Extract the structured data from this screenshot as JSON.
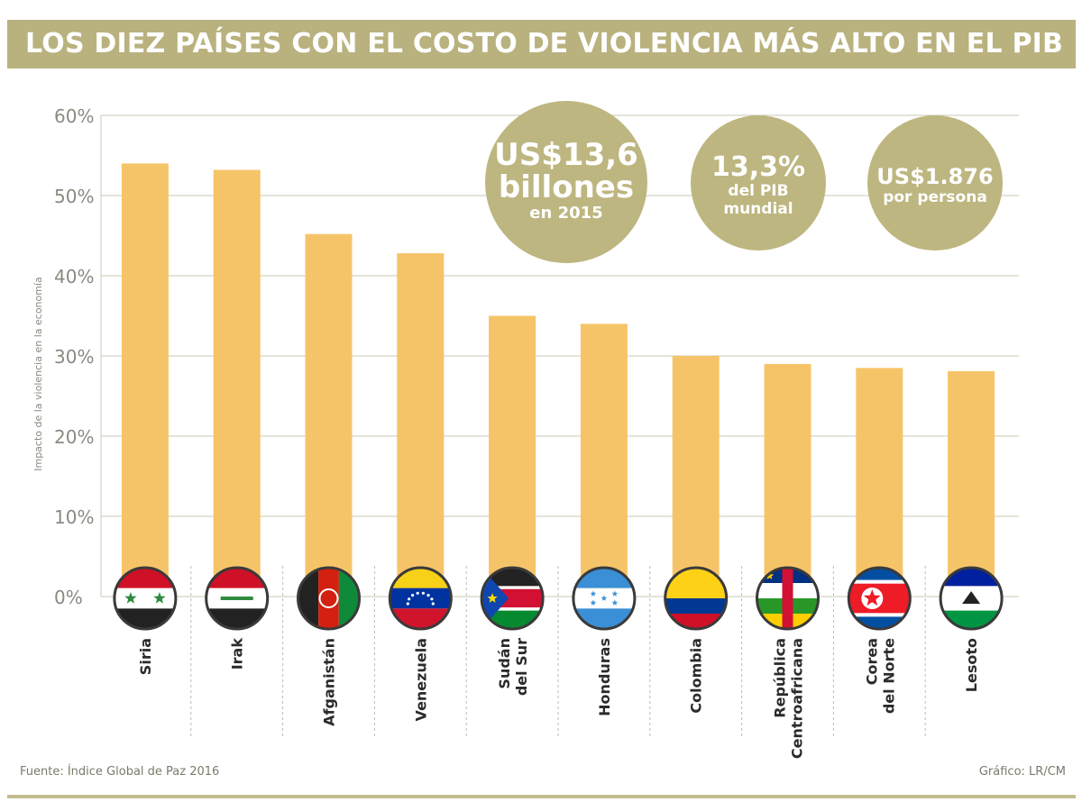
{
  "header": {
    "title": "LOS DIEZ PAÍSES CON EL COSTO DE VIOLENCIA MÁS ALTO EN EL PIB"
  },
  "stats": [
    {
      "big": "US$13,6",
      "mid": "billones",
      "small": "en 2015"
    },
    {
      "big": "13,3%",
      "mid": "del PIB",
      "small": "mundial"
    },
    {
      "big": "US$1.876",
      "mid": "por persona",
      "small": ""
    }
  ],
  "footer": {
    "source": "Fuente: Índice Global de Paz 2016",
    "credit": "Gráfico: LR/CM"
  },
  "colors": {
    "bar": "#f6c468",
    "accent": "#b9b27e",
    "bubble": "#bdb680",
    "grid": "#c8c8b4"
  },
  "chart_data": {
    "type": "bar",
    "title": "LOS DIEZ PAÍSES CON EL COSTO DE VIOLENCIA MÁS ALTO EN EL PIB",
    "xlabel": "",
    "ylabel": "Impacto de la violencia en la economía",
    "ylim": [
      0,
      60
    ],
    "yticks": [
      0,
      10,
      20,
      30,
      40,
      50,
      60
    ],
    "ytick_labels": [
      "0%",
      "10%",
      "20%",
      "30%",
      "40%",
      "50%",
      "60%"
    ],
    "grid": true,
    "categories": [
      [
        "Siria"
      ],
      [
        "Irak"
      ],
      [
        "Afganistán"
      ],
      [
        "Venezuela"
      ],
      [
        "Sudán",
        "del Sur"
      ],
      [
        "Honduras"
      ],
      [
        "Colombia"
      ],
      [
        "República",
        "Centroafricana"
      ],
      [
        "Corea",
        "del Norte"
      ],
      [
        "Lesoto"
      ]
    ],
    "values": [
      54.0,
      53.2,
      45.2,
      42.8,
      35.0,
      34.0,
      30.0,
      29.0,
      28.5,
      28.1
    ],
    "flags": [
      "syria-flag-icon",
      "iraq-flag-icon",
      "afghanistan-flag-icon",
      "venezuela-flag-icon",
      "south-sudan-flag-icon",
      "honduras-flag-icon",
      "colombia-flag-icon",
      "central-african-republic-flag-icon",
      "north-korea-flag-icon",
      "lesotho-flag-icon"
    ]
  }
}
